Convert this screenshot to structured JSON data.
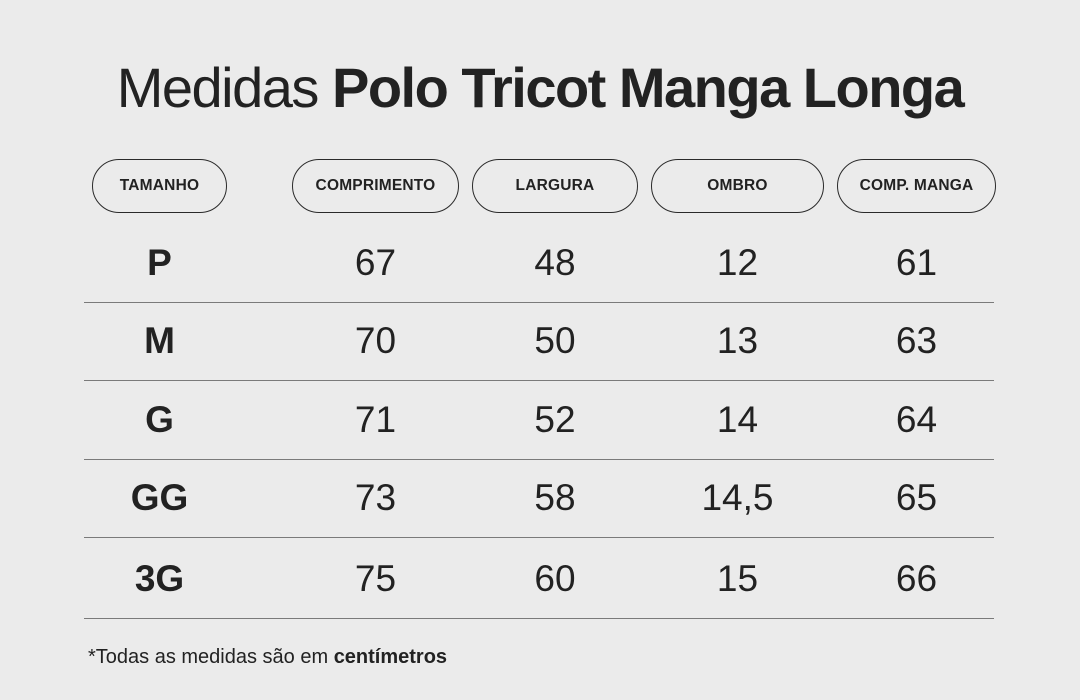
{
  "title": {
    "light": "Medidas",
    "bold": "Polo Tricot Manga Longa"
  },
  "headers": [
    "TAMANHO",
    "COMPRIMENTO",
    "LARGURA",
    "OMBRO",
    "COMP. MANGA"
  ],
  "rows": [
    {
      "size": "P",
      "values": [
        "67",
        "48",
        "12",
        "61"
      ]
    },
    {
      "size": "M",
      "values": [
        "70",
        "50",
        "13",
        "63"
      ]
    },
    {
      "size": "G",
      "values": [
        "71",
        "52",
        "14",
        "64"
      ]
    },
    {
      "size": "GG",
      "values": [
        "73",
        "58",
        "14,5",
        "65"
      ]
    },
    {
      "size": "3G",
      "values": [
        "75",
        "60",
        "15",
        "66"
      ]
    }
  ],
  "footnote": {
    "text": "*Todas as medidas são em ",
    "bold": "centímetros"
  },
  "colors": {
    "background": "#ebebeb",
    "text": "#222222",
    "divider": "#7a7a7a"
  }
}
